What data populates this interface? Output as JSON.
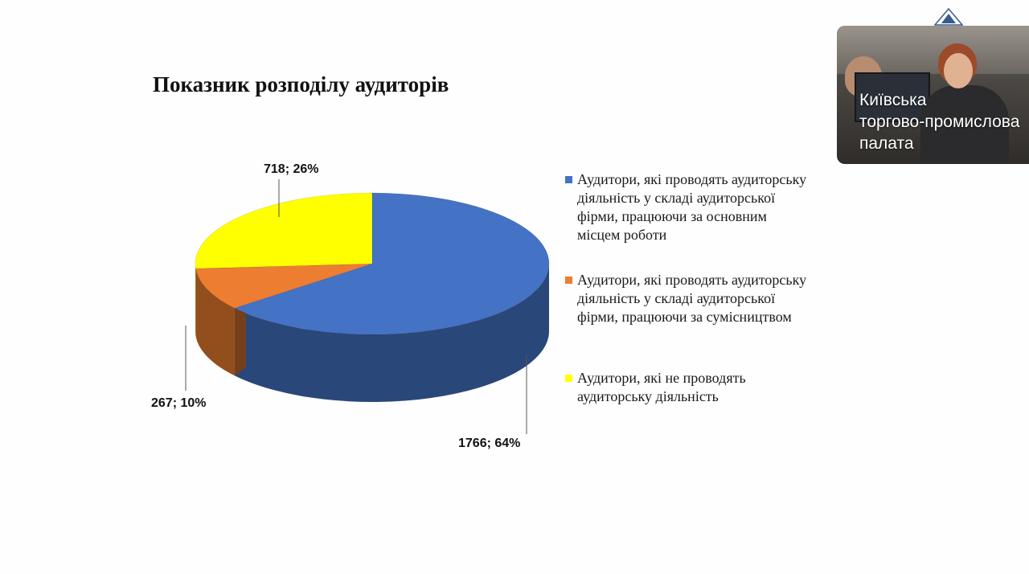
{
  "slide": {
    "title": "Показник розподілу аудиторів"
  },
  "chart_data": {
    "type": "pie",
    "title": "Показник розподілу аудиторів",
    "slices": [
      {
        "name": "Аудитори, які проводять аудиторську діяльність у складі аудиторської фірми, працюючи за основним місцем роботи",
        "value": 1766,
        "percent": 64,
        "label": "1766; 64%",
        "color": "#4472C4"
      },
      {
        "name": "Аудитори, які проводять аудиторську діяльність у складі аудиторської фірми, працюючи за сумісництвом",
        "value": 267,
        "percent": 10,
        "label": "267; 10%",
        "color": "#ED7D31"
      },
      {
        "name": "Аудитори, які не проводять аудиторську діяльність",
        "value": 718,
        "percent": 26,
        "label": "718; 26%",
        "color": "#FFFF00"
      }
    ],
    "legend_placement": "right",
    "style": "3d"
  },
  "legend": [
    {
      "lines": [
        "Аудитори, які проводять аудиторську",
        "діяльність у складі аудиторської",
        "фірми, працюючи за основним",
        "місцем роботи"
      ],
      "color": "#4472C4"
    },
    {
      "lines": [
        "Аудитори, які проводять аудиторську",
        "діяльність у складі аудиторської",
        "фірми, працюючи за сумісництвом"
      ],
      "color": "#ED7D31"
    },
    {
      "lines": [
        "Аудитори, які не проводять",
        "аудиторську діяльність"
      ],
      "color": "#FFFF00"
    }
  ],
  "video": {
    "caption_lines": [
      "Київська",
      "торгово-промислова",
      "палата"
    ]
  }
}
